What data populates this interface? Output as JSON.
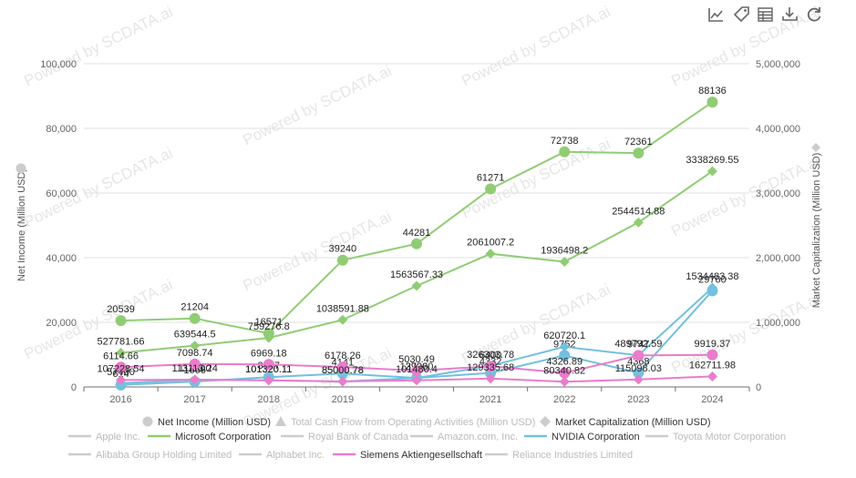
{
  "toolbar": {
    "icons": [
      "line-chart-icon",
      "tag-icon",
      "table-icon",
      "download-icon",
      "refresh-icon"
    ]
  },
  "watermark": "Powered by SCDATA.ai",
  "colors": {
    "microsoft": "#91cc75",
    "nvidia": "#73c0de",
    "siemens": "#ea7ccc",
    "inactive": "#cccccc",
    "grid": "#e0e0e0",
    "axis": "#6e7079"
  },
  "chart_data": {
    "type": "line",
    "title": "",
    "x": [
      "2016",
      "2017",
      "2018",
      "2019",
      "2020",
      "2021",
      "2022",
      "2023",
      "2024"
    ],
    "y_left": {
      "label": "Net Income (Million USD)",
      "range": [
        0,
        100000
      ],
      "ticks": [
        "0",
        "20,000",
        "40,000",
        "60,000",
        "80,000",
        "100,000"
      ]
    },
    "y_right": {
      "label": "Market Capitalization (Million USD)",
      "range": [
        0,
        5000000
      ],
      "ticks": [
        "0",
        "1,000,000",
        "2,000,000",
        "3,000,000",
        "4,000,000",
        "5,000,000"
      ]
    },
    "metric_legend": [
      {
        "name": "Net Income (Million USD)",
        "shape": "circle",
        "active": true
      },
      {
        "name": "Total Cash Flow from Operating Activities (Million USD)",
        "shape": "triangle",
        "active": false
      },
      {
        "name": "Market Capitalization (Million USD)",
        "shape": "diamond",
        "active": true
      }
    ],
    "company_legend": [
      {
        "name": "Apple Inc.",
        "color_key": "inactive",
        "active": false
      },
      {
        "name": "Microsoft Corporation",
        "color_key": "microsoft",
        "active": true
      },
      {
        "name": "Royal Bank of Canada",
        "color_key": "inactive",
        "active": false
      },
      {
        "name": "Amazon.com, Inc.",
        "color_key": "inactive",
        "active": false
      },
      {
        "name": "NVIDIA Corporation",
        "color_key": "nvidia",
        "active": true
      },
      {
        "name": "Toyota Motor Corporation",
        "color_key": "inactive",
        "active": false
      },
      {
        "name": "Alibaba Group Holding Limited",
        "color_key": "inactive",
        "active": false
      },
      {
        "name": "Alphabet Inc.",
        "color_key": "inactive",
        "active": false
      },
      {
        "name": "Siemens Aktiengesellschaft",
        "color_key": "siemens",
        "active": true
      },
      {
        "name": "Reliance Industries Limited",
        "color_key": "inactive",
        "active": false
      }
    ],
    "series": [
      {
        "company": "Microsoft Corporation",
        "metric": "Net Income (Million USD)",
        "axis": "left",
        "marker": "circle",
        "color_key": "microsoft",
        "values": [
          20539,
          21204,
          16571,
          39240,
          44281,
          61271,
          72738,
          72361,
          88136
        ],
        "labels": [
          "20539",
          "21204",
          "16571",
          "39240",
          "44281",
          "61271",
          "72738",
          "72361",
          "88136"
        ]
      },
      {
        "company": "Microsoft Corporation",
        "metric": "Market Capitalization (Million USD)",
        "axis": "right",
        "marker": "diamond",
        "color_key": "microsoft",
        "values": [
          527781.66,
          639544.5,
          759276.8,
          1038591.88,
          1563567.33,
          2061007.2,
          1936498.2,
          2544514.88,
          3338269.55
        ],
        "labels": [
          "527781.66",
          "639544.5",
          "759276.8",
          "1038591.88",
          "1563567.33",
          "2061007.2",
          "1936498.2",
          "2544514.88",
          "3338269.55"
        ]
      },
      {
        "company": "NVIDIA Corporation",
        "metric": "Net Income (Million USD)",
        "axis": "left",
        "marker": "circle",
        "color_key": "nvidia",
        "values": [
          614,
          1666,
          3047,
          4141,
          2796,
          4332,
          9752,
          4368,
          29760
        ],
        "labels": [
          "614",
          "1666",
          "3047",
          "4141",
          "2796",
          "4332",
          "9752",
          "4368",
          "29760"
        ]
      },
      {
        "company": "NVIDIA Corporation",
        "metric": "Market Capitalization (Million USD)",
        "axis": "right",
        "marker": "diamond",
        "color_key": "nvidia",
        "values": [
          57400,
          113300,
          101320.11,
          85000.78,
          139000,
          326303.78,
          620720.1,
          489792.59,
          1534483.38
        ],
        "labels": [
          "57400",
          "113300",
          "101320.11",
          "85000.78",
          "139000",
          "326303.78",
          "620720.1",
          "489792.59",
          "1534483.38"
        ]
      },
      {
        "company": "Siemens Aktiengesellschaft",
        "metric": "Net Income (Million USD)",
        "axis": "left",
        "marker": "circle",
        "color_key": "siemens",
        "values": [
          6114.66,
          7098.74,
          6969.18,
          6178.26,
          5030.49,
          6400,
          4326.89,
          9747,
          9919.37
        ],
        "labels": [
          "6114.66",
          "7098.74",
          "6969.18",
          "6178.26",
          "5030.49",
          "6400",
          "4326.89",
          "9747",
          "9919.37"
        ]
      },
      {
        "company": "Siemens Aktiengesellschaft",
        "metric": "Market Capitalization (Million USD)",
        "axis": "right",
        "marker": "diamond",
        "color_key": "siemens",
        "values": [
          107228.54,
          113113.24,
          101320.11,
          85000.78,
          101480.4,
          129335.68,
          80340.82,
          115098.03,
          162711.98
        ],
        "labels": [
          "107228.54",
          "113113.24",
          "101320.11",
          "85000.78",
          "101480.4",
          "129335.68",
          "80340.82",
          "115098.03",
          "162711.98"
        ]
      }
    ]
  }
}
